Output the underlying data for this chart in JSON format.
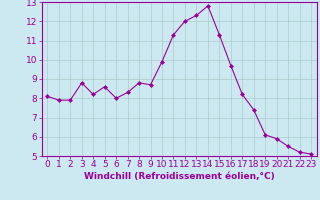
{
  "x": [
    0,
    1,
    2,
    3,
    4,
    5,
    6,
    7,
    8,
    9,
    10,
    11,
    12,
    13,
    14,
    15,
    16,
    17,
    18,
    19,
    20,
    21,
    22,
    23
  ],
  "y": [
    8.1,
    7.9,
    7.9,
    8.8,
    8.2,
    8.6,
    8.0,
    8.3,
    8.8,
    8.7,
    9.9,
    11.3,
    12.0,
    12.3,
    12.8,
    11.3,
    9.7,
    8.2,
    7.4,
    6.1,
    5.9,
    5.5,
    5.2,
    5.1
  ],
  "line_color": "#990099",
  "marker": "D",
  "marker_size": 2,
  "bg_color": "#cce8f0",
  "grid_color": "#aacccc",
  "xlabel": "Windchill (Refroidissement éolien,°C)",
  "xlim": [
    -0.5,
    23.5
  ],
  "ylim": [
    5,
    13
  ],
  "yticks": [
    5,
    6,
    7,
    8,
    9,
    10,
    11,
    12,
    13
  ],
  "xticks": [
    0,
    1,
    2,
    3,
    4,
    5,
    6,
    7,
    8,
    9,
    10,
    11,
    12,
    13,
    14,
    15,
    16,
    17,
    18,
    19,
    20,
    21,
    22,
    23
  ],
  "tick_color": "#990099",
  "label_color": "#990099",
  "axis_label_fontsize": 6.5,
  "tick_fontsize": 6.5,
  "linewidth": 0.8
}
